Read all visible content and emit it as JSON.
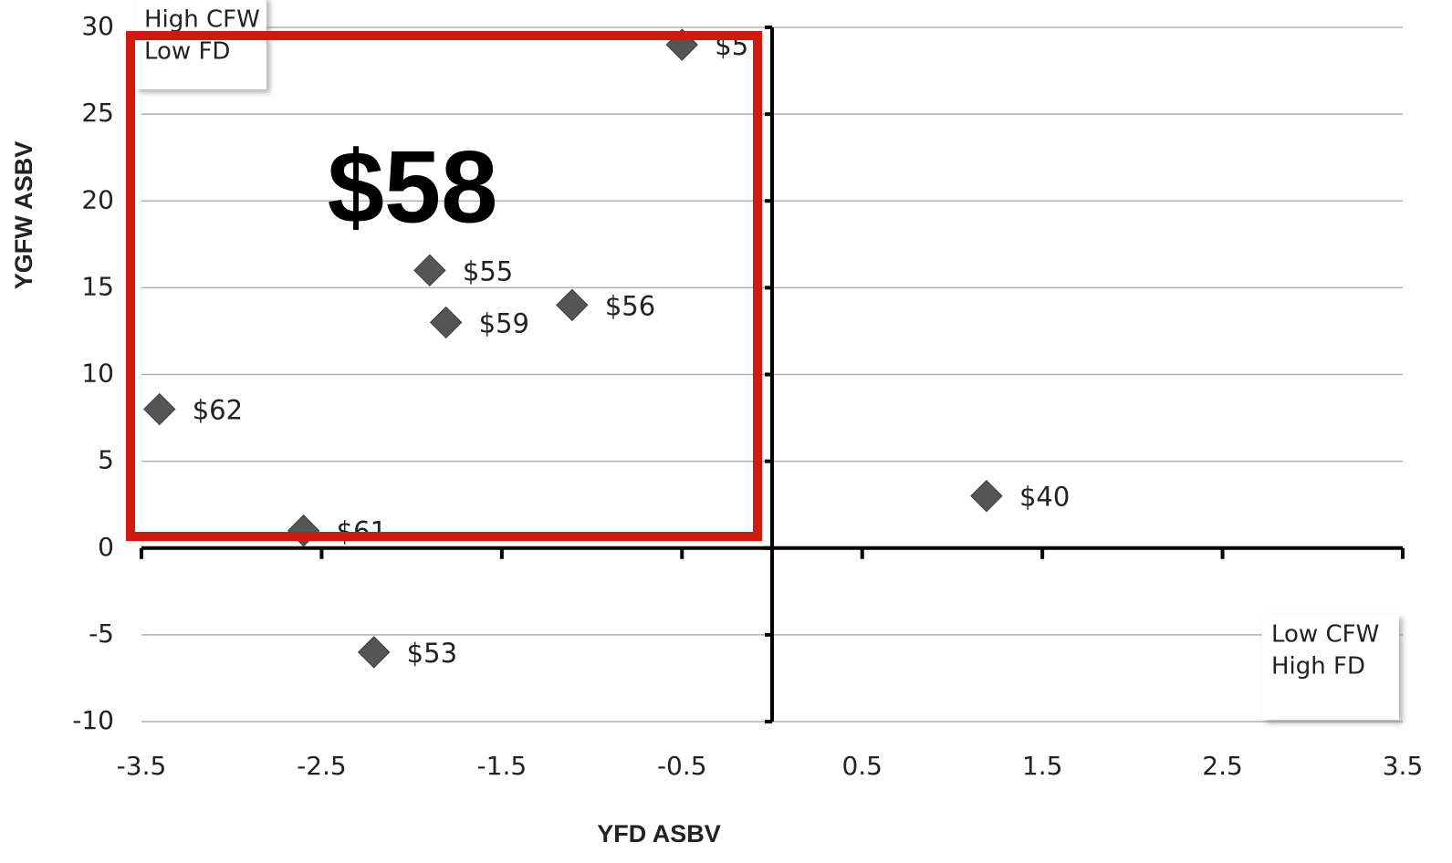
{
  "chart_data": {
    "type": "scatter",
    "x_label": "YFD ASBV",
    "y_label": "YGFW ASBV",
    "series": [
      {
        "color": "#555555",
        "x": [
          -0.5,
          -1.9,
          -1.81,
          -1.11,
          -3.4,
          -2.6,
          -2.21,
          1.19
        ],
        "values": [
          29,
          16,
          13,
          14,
          8,
          1,
          -6,
          3
        ],
        "labels": [
          "$5",
          "$55",
          "$59",
          "$56",
          "$62",
          "$61",
          "$53",
          "$40"
        ]
      }
    ],
    "xlim": [
      -3.5,
      3.5
    ],
    "xticks": [
      -3.5,
      -2.5,
      -1.5,
      -0.5,
      0.5,
      1.5,
      2.5,
      3.5
    ],
    "ylim": [
      -10,
      30
    ],
    "yticks": [
      -10,
      -5,
      0,
      5,
      10,
      15,
      20,
      25,
      30
    ],
    "grid": true,
    "annotations": [
      {
        "lines": [
          "High CFW",
          "Low FD"
        ]
      },
      {
        "lines": [
          "Low CFW",
          "High FD"
        ]
      }
    ],
    "highlight": {
      "label": "$58",
      "color": "#d0190f"
    }
  }
}
